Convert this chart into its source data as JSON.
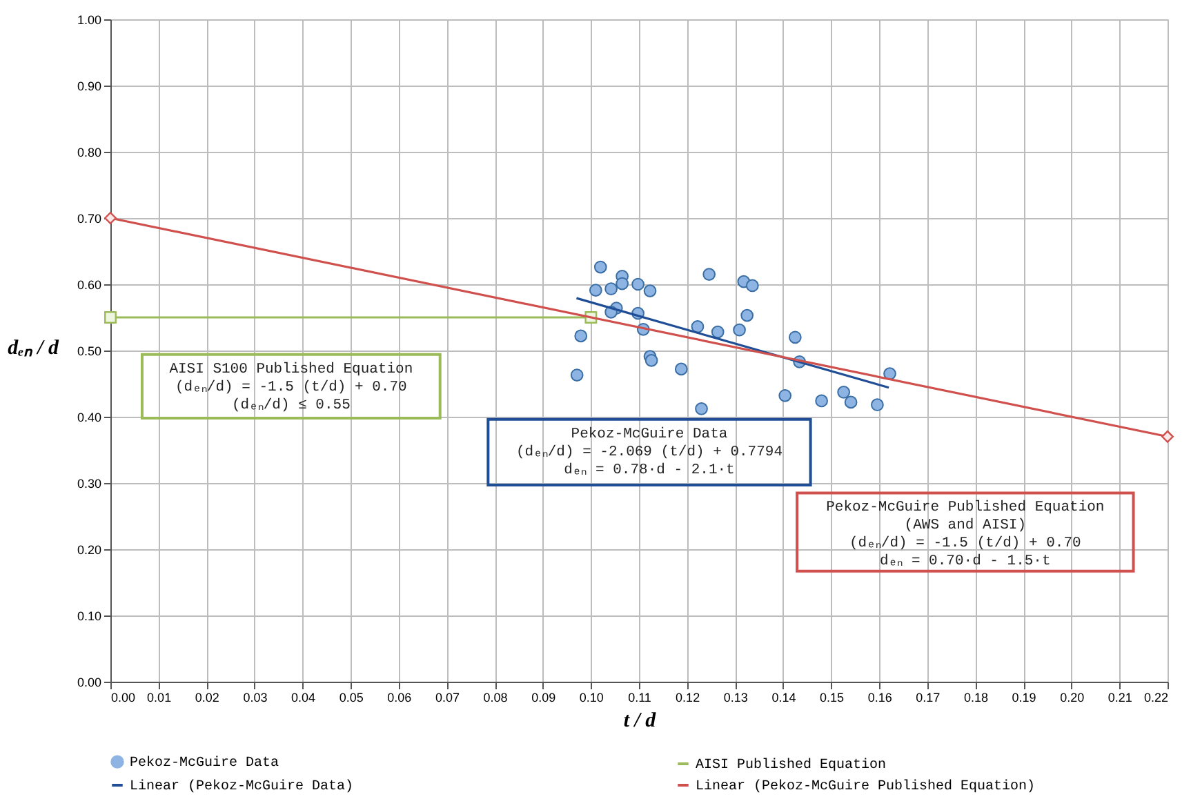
{
  "chart_data": {
    "type": "scatter",
    "xlabel": "t / d",
    "ylabel": "dₑₙ / d",
    "xlim": [
      0,
      0.22
    ],
    "ylim": [
      0,
      1
    ],
    "xticks": [
      {
        "value": 0,
        "label": "0.00"
      },
      {
        "value": 0.01,
        "label": "0.01"
      },
      {
        "value": 0.02,
        "label": "0.02"
      },
      {
        "value": 0.03,
        "label": "0.03"
      },
      {
        "value": 0.04,
        "label": "0.04"
      },
      {
        "value": 0.05,
        "label": "0.05"
      },
      {
        "value": 0.06,
        "label": "0.06"
      },
      {
        "value": 0.07,
        "label": "0.07"
      },
      {
        "value": 0.08,
        "label": "0.08"
      },
      {
        "value": 0.09,
        "label": "0.09"
      },
      {
        "value": 0.1,
        "label": "0.10"
      },
      {
        "value": 0.11,
        "label": "0.11"
      },
      {
        "value": 0.12,
        "label": "0.12"
      },
      {
        "value": 0.13,
        "label": "0.13"
      },
      {
        "value": 0.14,
        "label": "0.14"
      },
      {
        "value": 0.15,
        "label": "0.15"
      },
      {
        "value": 0.16,
        "label": "0.16"
      },
      {
        "value": 0.17,
        "label": "0.17"
      },
      {
        "value": 0.18,
        "label": "0.18"
      },
      {
        "value": 0.19,
        "label": "0.19"
      },
      {
        "value": 0.2,
        "label": "0.20"
      },
      {
        "value": 0.21,
        "label": "0.21"
      },
      {
        "value": 0.22,
        "label": "0.22"
      }
    ],
    "yticks": [
      {
        "value": 0,
        "label": "0.00"
      },
      {
        "value": 0.1,
        "label": "0.10"
      },
      {
        "value": 0.2,
        "label": "0.20"
      },
      {
        "value": 0.3,
        "label": "0.30"
      },
      {
        "value": 0.4,
        "label": "0.40"
      },
      {
        "value": 0.5,
        "label": "0.50"
      },
      {
        "value": 0.6,
        "label": "0.60"
      },
      {
        "value": 0.7,
        "label": "0.70"
      },
      {
        "value": 0.8,
        "label": "0.80"
      },
      {
        "value": 0.9,
        "label": "0.90"
      },
      {
        "value": 1,
        "label": "1.00"
      }
    ],
    "grid": true,
    "legend": "bottom",
    "series": [
      {
        "name": "Pekoz-McGuire Data",
        "marker": "circle",
        "color": "#8db4e2",
        "x": [
          0.102,
          0.1065,
          0.1065,
          0.101,
          0.1042,
          0.1098,
          0.1123,
          0.1246,
          0.1318,
          0.1336,
          0.1053,
          0.1042,
          0.1098,
          0.1325,
          0.0979,
          0.1109,
          0.1222,
          0.1264,
          0.1309,
          0.1425,
          0.1434,
          0.1123,
          0.1126,
          0.1188,
          0.0971,
          0.1622,
          0.123,
          0.1404,
          0.148,
          0.1526,
          0.1541,
          0.1596
        ],
        "values": [
          0.626,
          0.612,
          0.601,
          0.591,
          0.593,
          0.6,
          0.59,
          0.615,
          0.604,
          0.598,
          0.564,
          0.558,
          0.556,
          0.553,
          0.522,
          0.532,
          0.536,
          0.528,
          0.531,
          0.52,
          0.483,
          0.491,
          0.485,
          0.472,
          0.463,
          0.465,
          0.412,
          0.432,
          0.424,
          0.437,
          0.422,
          0.418
        ]
      },
      {
        "name": "AISI Published Equation",
        "type": "line",
        "marker": "square",
        "color": "#9bbb59",
        "x": [
          0,
          0.1
        ],
        "values": [
          0.55,
          0.55
        ]
      },
      {
        "name": "Linear (Pekoz-McGuire Data)",
        "type": "line",
        "marker": "none",
        "color": "#1f4e96",
        "x": [
          0.097,
          0.162
        ],
        "values": [
          0.579,
          0.444
        ]
      },
      {
        "name": "Linear (Pekoz-McGuire Published Equation)",
        "type": "line",
        "marker": "diamond",
        "color": "#d0504d",
        "x": [
          0,
          0.22
        ],
        "values": [
          0.7,
          0.37
        ]
      }
    ],
    "annotations": [
      "AISI S100 Published Equation\n(dₑₙ/d) = -1.5 (t/d) + 0.70\n(dₑₙ/d) ≤ 0.55",
      "Pekoz-McGuire Data\n(dₑₙ/d) = -2.069 (t/d) + 0.7794\ndₑₙ = 0.78·d - 2.1·t",
      "Pekoz-McGuire Published Equation\n(AWS and AISI)\n(dₑₙ/d) = -1.5 (t/d) + 0.70\ndₑₙ = 0.70·d - 1.5·t"
    ]
  }
}
